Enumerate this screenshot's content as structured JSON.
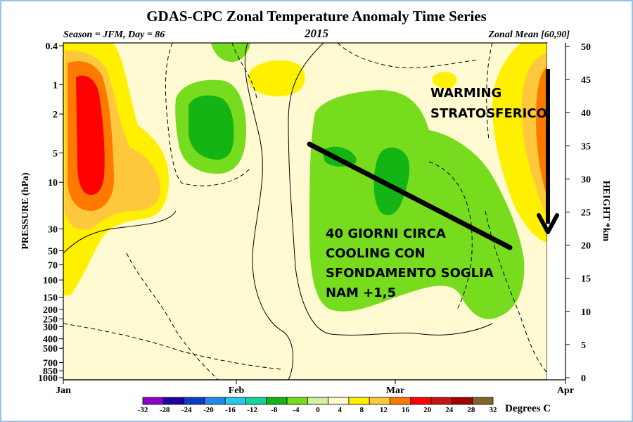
{
  "chart_data": {
    "type": "heatmap",
    "title": "GDAS-CPC Zonal Temperature Anomaly Time Series",
    "subtitle_left": "Season = JFM, Day =  86",
    "subtitle_center": "2015",
    "subtitle_right": "Zonal Mean [60,90]",
    "ylabel_left": "PRESSURE (hPa)",
    "ylabel_right": "HEIGHT *km",
    "x_ticks": [
      "Jan",
      "Feb",
      "Mar",
      "Apr"
    ],
    "pressure_ticks": [
      "0.4",
      "1",
      "2",
      "5",
      "10",
      "30",
      "50",
      "70",
      "100",
      "150",
      "200",
      "250",
      "300",
      "400",
      "500",
      "700",
      "850",
      "1000"
    ],
    "height_ticks": [
      "0",
      "5",
      "10",
      "15",
      "20",
      "25",
      "30",
      "35",
      "40",
      "45",
      "50"
    ],
    "height_range": [
      0,
      50
    ],
    "colorbar": {
      "labels": [
        "-32",
        "-28",
        "-24",
        "-20",
        "-16",
        "-12",
        "-8",
        "-4",
        "0",
        "4",
        "8",
        "12",
        "16",
        "20",
        "24",
        "28",
        "32"
      ],
      "colors": [
        "#8c00c8",
        "#1e00a0",
        "#0a3cc8",
        "#1e8ce6",
        "#28c8f0",
        "#14d2a0",
        "#14b414",
        "#78dc1e",
        "#d2f0a0",
        "#fffad2",
        "#fff000",
        "#ffc83c",
        "#ff7800",
        "#ff0000",
        "#c81414",
        "#a00000",
        "#826428"
      ],
      "unit_label": "Degrees C"
    },
    "annotations": {
      "warming": [
        "WARMING",
        "STRATOSFERICO"
      ],
      "cooling": [
        "40 GIORNI CIRCA",
        "COOLING CON",
        "SFONDAMENTO SOGLIA",
        "NAM +1,5"
      ]
    },
    "note": ""
  }
}
